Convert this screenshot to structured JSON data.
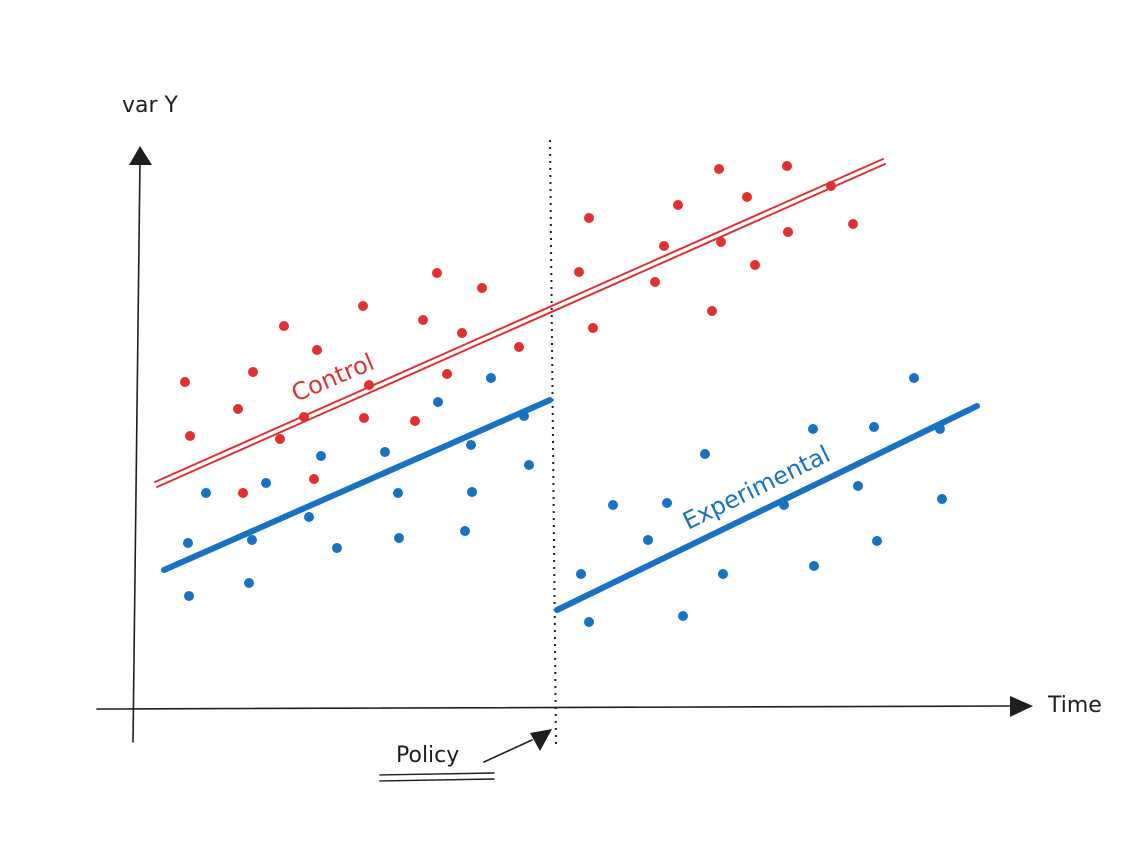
{
  "y_axis_label": "var Y",
  "x_axis_label": "Time",
  "event_label": "Policy",
  "series": [
    {
      "key": "control",
      "name": "Control",
      "color": "#e03131",
      "pre_points": [
        [
          185,
          382
        ],
        [
          190,
          436
        ],
        [
          243,
          493
        ],
        [
          238,
          409
        ],
        [
          253,
          372
        ],
        [
          284,
          326
        ],
        [
          280,
          439
        ],
        [
          304,
          417
        ],
        [
          317,
          350
        ],
        [
          314,
          479
        ],
        [
          363,
          306
        ],
        [
          369,
          385
        ],
        [
          364,
          418
        ],
        [
          415,
          421
        ],
        [
          423,
          320
        ],
        [
          437,
          273
        ],
        [
          447,
          374
        ],
        [
          462,
          333
        ],
        [
          482,
          288
        ],
        [
          519,
          347
        ]
      ],
      "post_points": [
        [
          579,
          272
        ],
        [
          589,
          218
        ],
        [
          593,
          328
        ],
        [
          655,
          282
        ],
        [
          664,
          246
        ],
        [
          678,
          205
        ],
        [
          712,
          311
        ],
        [
          719,
          169
        ],
        [
          721,
          242
        ],
        [
          747,
          197
        ],
        [
          755,
          265
        ],
        [
          787,
          166
        ],
        [
          788,
          232
        ],
        [
          831,
          186
        ],
        [
          853,
          224
        ]
      ]
    },
    {
      "key": "experimental",
      "name": "Experimental",
      "color": "#1971c2",
      "pre_points": [
        [
          189,
          596
        ],
        [
          188,
          543
        ],
        [
          206,
          493
        ],
        [
          249,
          583
        ],
        [
          252,
          540
        ],
        [
          266,
          483
        ],
        [
          309,
          517
        ],
        [
          321,
          456
        ],
        [
          337,
          548
        ],
        [
          385,
          452
        ],
        [
          398,
          493
        ],
        [
          399,
          538
        ],
        [
          438,
          402
        ],
        [
          465,
          531
        ],
        [
          471,
          445
        ],
        [
          472,
          492
        ],
        [
          491,
          378
        ],
        [
          524,
          416
        ],
        [
          529,
          465
        ]
      ],
      "post_points": [
        [
          581,
          574
        ],
        [
          589,
          622
        ],
        [
          613,
          505
        ],
        [
          648,
          540
        ],
        [
          667,
          503
        ],
        [
          683,
          616
        ],
        [
          705,
          454
        ],
        [
          723,
          574
        ],
        [
          784,
          505
        ],
        [
          813,
          429
        ],
        [
          814,
          566
        ],
        [
          858,
          486
        ],
        [
          874,
          427
        ],
        [
          877,
          541
        ],
        [
          914,
          378
        ],
        [
          940,
          429
        ],
        [
          942,
          499
        ]
      ]
    }
  ]
}
